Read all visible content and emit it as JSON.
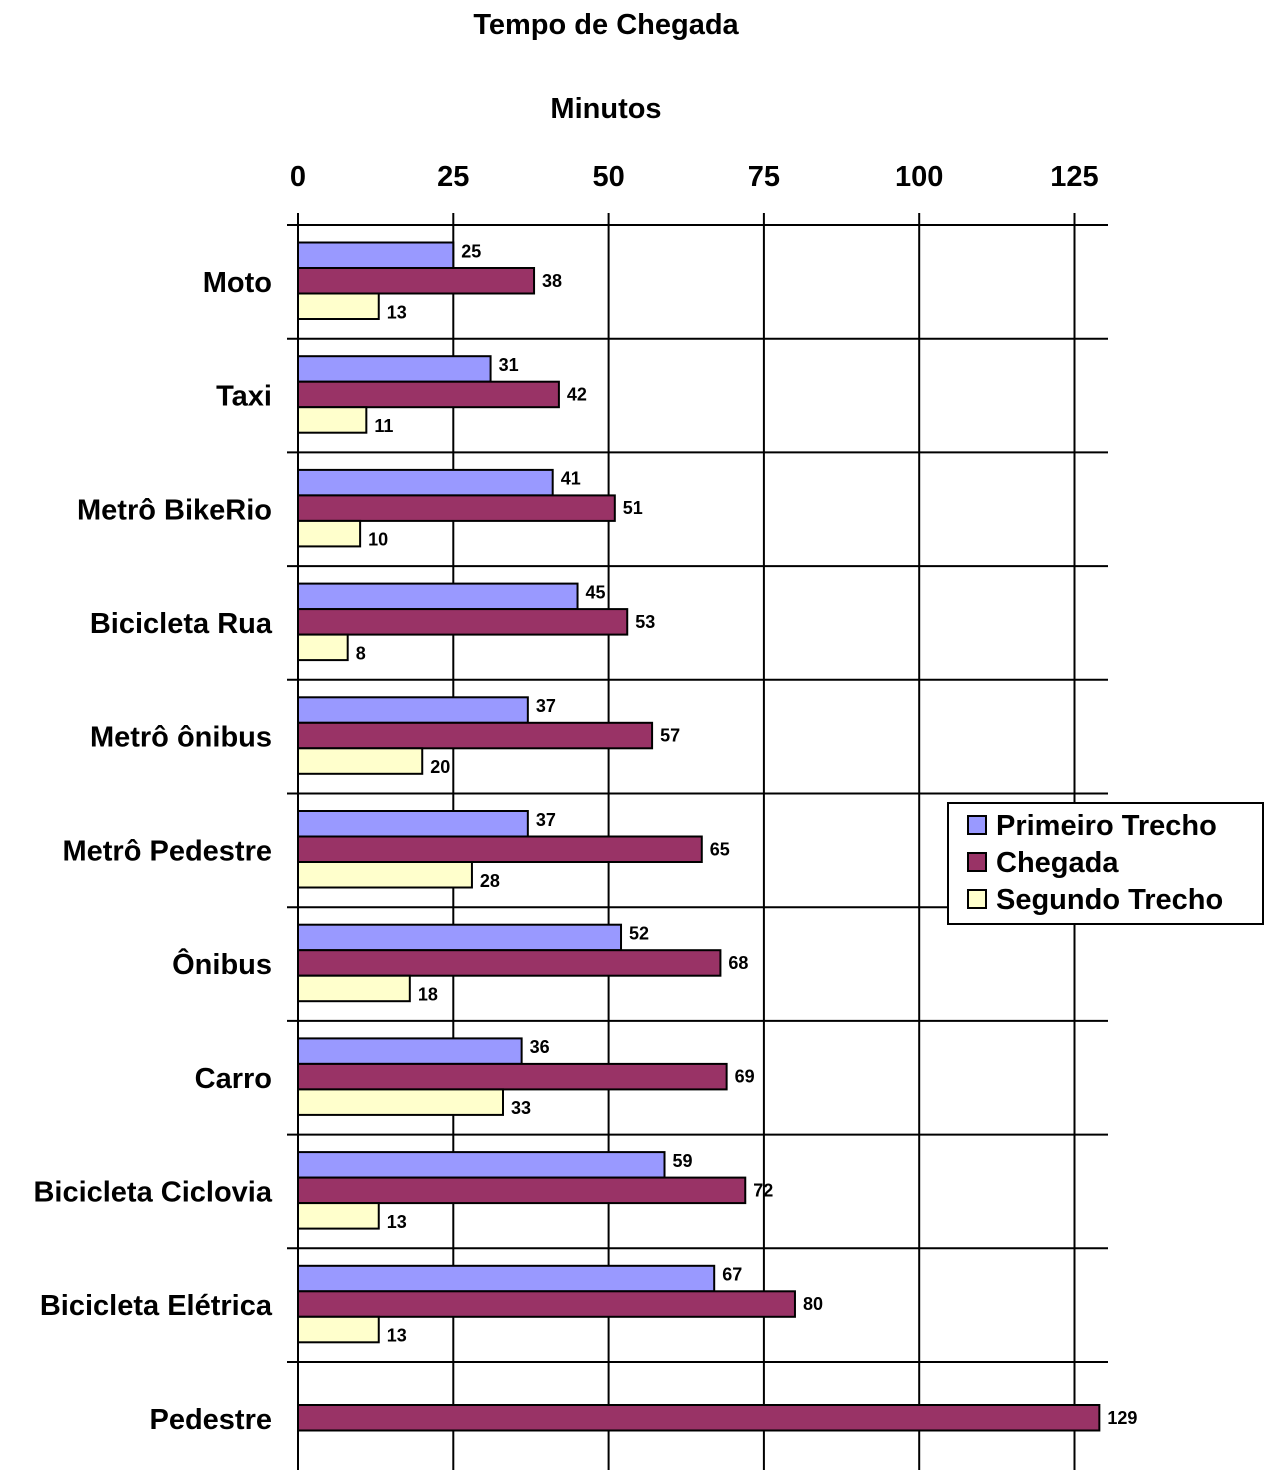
{
  "chart_data": {
    "type": "bar",
    "orientation": "horizontal",
    "title": "Tempo de Chegada",
    "xlabel": "Minutos",
    "ylabel": "",
    "xlim": [
      0,
      130
    ],
    "xticks": [
      "0",
      "25",
      "50",
      "75",
      "100",
      "125"
    ],
    "xtick_values": [
      0,
      25,
      50,
      75,
      100,
      125
    ],
    "axis_position": "top",
    "grid": true,
    "legend_position": "right",
    "categories": [
      "Moto",
      "Taxi",
      "Metrô BikeRio",
      "Bicicleta Rua",
      "Metrô ônibus",
      "Metrô Pedestre",
      "Ônibus",
      "Carro",
      "Bicicleta Ciclovia",
      "Bicicleta Elétrica",
      "Pedestre"
    ],
    "series": [
      {
        "name": "Primeiro Trecho",
        "color": "#9999ff",
        "values": [
          25,
          31,
          41,
          45,
          37,
          37,
          52,
          36,
          59,
          67,
          null
        ]
      },
      {
        "name": "Chegada",
        "color": "#993366",
        "values": [
          38,
          42,
          51,
          53,
          57,
          65,
          68,
          69,
          72,
          80,
          129
        ]
      },
      {
        "name": "Segundo Trecho",
        "color": "#ffffcc",
        "values": [
          13,
          11,
          10,
          8,
          20,
          28,
          18,
          33,
          13,
          13,
          null
        ]
      }
    ]
  }
}
